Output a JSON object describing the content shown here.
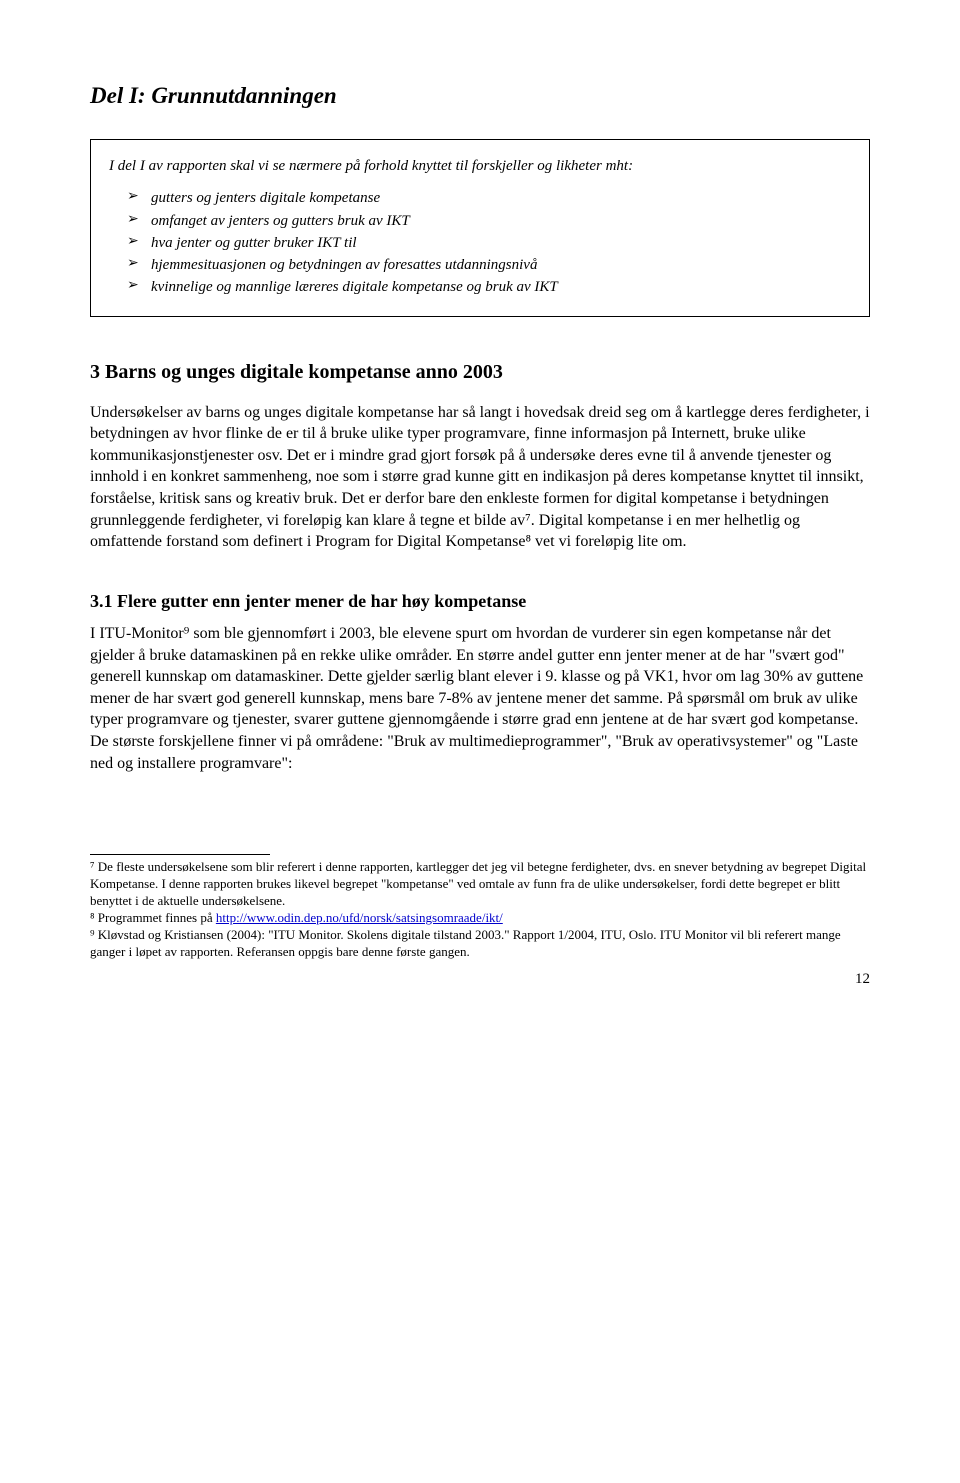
{
  "title": "Del I: Grunnutdanningen",
  "box": {
    "intro": "I del I av rapporten skal vi se nærmere på forhold knyttet til forskjeller og likheter mht:",
    "items": [
      "gutters og jenters digitale kompetanse",
      "omfanget av jenters og gutters bruk av IKT",
      "hva jenter og gutter bruker IKT til",
      "hjemmesituasjonen og betydningen av foresattes utdanningsnivå",
      "kvinnelige og mannlige læreres digitale kompetanse og bruk av IKT"
    ]
  },
  "section3": {
    "heading": "3 Barns og unges digitale kompetanse anno 2003",
    "body": "Undersøkelser av barns og unges digitale kompetanse har så langt i hovedsak dreid seg om å kartlegge deres ferdigheter, i betydningen av hvor flinke de er til å bruke ulike typer programvare, finne informasjon på Internett, bruke ulike kommunikasjonstjenester osv. Det er i mindre grad gjort forsøk på å undersøke deres evne til å anvende tjenester og innhold i en konkret sammenheng, noe som i større grad kunne gitt en indikasjon på deres kompetanse knyttet til innsikt, forståelse, kritisk sans og kreativ bruk. Det er derfor bare den enkleste formen for digital kompetanse i betydningen grunnleggende ferdigheter, vi foreløpig kan klare å tegne et bilde av⁷. Digital kompetanse i en mer helhetlig og omfattende forstand som definert i Program for Digital Kompetanse⁸ vet vi foreløpig lite om."
  },
  "section31": {
    "heading": "3.1 Flere gutter enn jenter mener de har høy kompetanse",
    "body": "I ITU-Monitor⁹ som ble gjennomført i 2003, ble elevene spurt om hvordan de vurderer sin egen kompetanse når det gjelder å bruke datamaskinen på en rekke ulike områder. En større andel gutter enn jenter mener at de har \"svært god\" generell kunnskap om datamaskiner. Dette gjelder særlig blant elever i 9. klasse og på VK1, hvor om lag 30% av guttene mener de har svært god generell kunnskap, mens bare 7-8% av jentene mener det samme. På spørsmål om bruk av ulike typer programvare og tjenester, svarer guttene gjennomgående i større grad enn jentene at de har svært god kompetanse. De største forskjellene finner vi på områdene: \"Bruk av multimedieprogrammer\", \"Bruk av operativsystemer\" og \"Laste ned og installere programvare\":"
  },
  "footnotes": {
    "f7": "⁷ De fleste undersøkelsene som blir referert i denne rapporten, kartlegger det jeg vil betegne ferdigheter, dvs. en snever betydning av begrepet Digital Kompetanse. I denne rapporten brukes likevel begrepet \"kompetanse\" ved omtale av funn fra de ulike undersøkelser, fordi dette begrepet er blitt benyttet i de aktuelle undersøkelsene.",
    "f8_pre": "⁸ Programmet finnes på ",
    "f8_link": "http://www.odin.dep.no/ufd/norsk/satsingsomraade/ikt/",
    "f9": "⁹ Kløvstad og Kristiansen (2004): \"ITU Monitor. Skolens digitale tilstand 2003.\" Rapport 1/2004, ITU, Oslo. ITU Monitor vil bli referert mange ganger i løpet av rapporten. Referansen oppgis bare denne første gangen."
  },
  "page_number": "12"
}
